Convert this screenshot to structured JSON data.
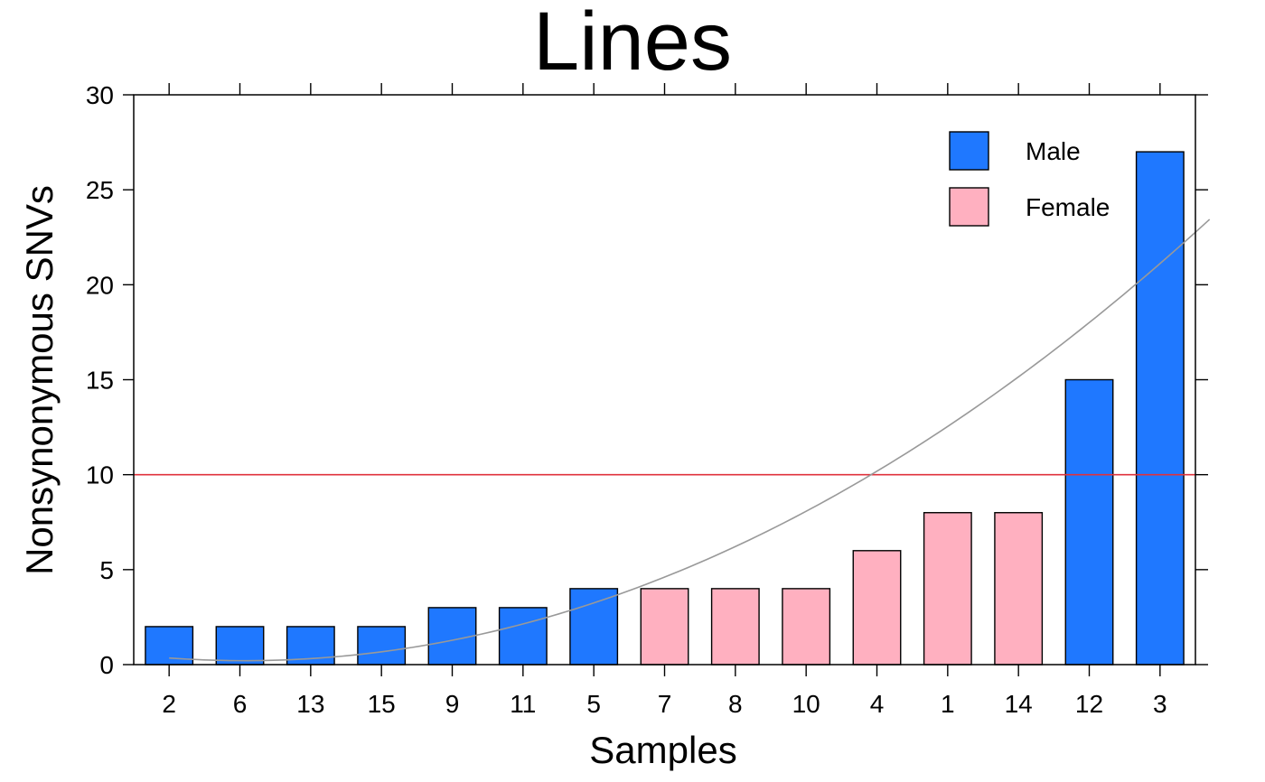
{
  "chart_data": {
    "type": "bar",
    "title": "Lines",
    "xlabel": "Samples",
    "ylabel": "Nonsynonymous SNVs",
    "ylim": [
      0,
      30
    ],
    "yticks": [
      0,
      5,
      10,
      15,
      20,
      25,
      30
    ],
    "grid": false,
    "legend_position": "top-right",
    "categories": [
      "2",
      "6",
      "13",
      "15",
      "9",
      "11",
      "5",
      "7",
      "8",
      "10",
      "4",
      "1",
      "14",
      "12",
      "3"
    ],
    "values": [
      2,
      2,
      2,
      2,
      3,
      3,
      4,
      4,
      4,
      4,
      6,
      8,
      8,
      15,
      27
    ],
    "groups": [
      "Male",
      "Male",
      "Male",
      "Male",
      "Male",
      "Male",
      "Male",
      "Female",
      "Female",
      "Female",
      "Female",
      "Female",
      "Female",
      "Male",
      "Male"
    ],
    "legend": [
      {
        "name": "Male",
        "color": "#1f78ff"
      },
      {
        "name": "Female",
        "color": "#ffb0c0"
      }
    ],
    "reference_line": {
      "y": 10,
      "color": "#e0323c"
    },
    "trend_curve": {
      "color": "#999999",
      "x": [
        1,
        3,
        5,
        7,
        9,
        11,
        13,
        15,
        15.7
      ],
      "y": [
        0.1,
        0.4,
        1.5,
        3.5,
        6.3,
        10,
        14.7,
        20.5,
        24.3
      ]
    }
  }
}
